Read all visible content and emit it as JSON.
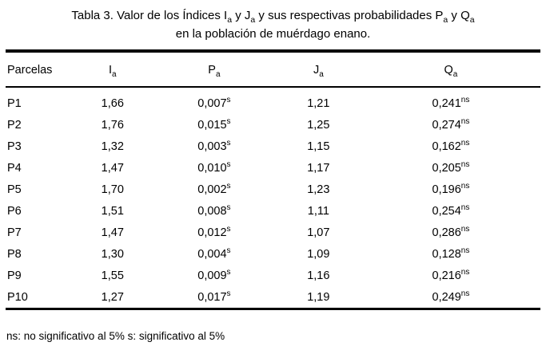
{
  "title": {
    "seg1": "Tabla 3. Valor de los Índices I",
    "seg2": " y J",
    "seg3": " y sus respectivas probabilidades P",
    "seg4": " y Q",
    "sub": "a",
    "line2": "en la población de muérdago enano."
  },
  "header": {
    "col_parcelas": "Parcelas",
    "col_ia": {
      "base": "I",
      "sub": "a"
    },
    "col_pa": {
      "base": "P",
      "sub": "a"
    },
    "col_ja": {
      "base": "J",
      "sub": "a"
    },
    "col_qa": {
      "base": "Q",
      "sub": "a"
    }
  },
  "rows": [
    {
      "parcela": "P1",
      "ia": "1,66",
      "pa": "0,007",
      "pa_sig": "s",
      "ja": "1,21",
      "qa": "0,241",
      "qa_sig": "ns"
    },
    {
      "parcela": "P2",
      "ia": "1,76",
      "pa": "0,015",
      "pa_sig": "s",
      "ja": "1,25",
      "qa": "0,274",
      "qa_sig": "ns"
    },
    {
      "parcela": "P3",
      "ia": "1,32",
      "pa": "0,003",
      "pa_sig": "s",
      "ja": "1,15",
      "qa": "0,162",
      "qa_sig": "ns"
    },
    {
      "parcela": "P4",
      "ia": "1,47",
      "pa": "0,010",
      "pa_sig": "s",
      "ja": "1,17",
      "qa": "0,205",
      "qa_sig": "ns"
    },
    {
      "parcela": "P5",
      "ia": "1,70",
      "pa": "0,002",
      "pa_sig": "s",
      "ja": "1,23",
      "qa": "0,196",
      "qa_sig": "ns"
    },
    {
      "parcela": "P6",
      "ia": "1,51",
      "pa": "0,008",
      "pa_sig": "s",
      "ja": "1,11",
      "qa": "0,254",
      "qa_sig": "ns"
    },
    {
      "parcela": "P7",
      "ia": "1,47",
      "pa": "0,012",
      "pa_sig": "s",
      "ja": "1,07",
      "qa": "0,286",
      "qa_sig": "ns"
    },
    {
      "parcela": "P8",
      "ia": "1,30",
      "pa": "0,004",
      "pa_sig": "s",
      "ja": "1,09",
      "qa": "0,128",
      "qa_sig": "ns"
    },
    {
      "parcela": "P9",
      "ia": "1,55",
      "pa": "0,009",
      "pa_sig": "s",
      "ja": "1,16",
      "qa": "0,216",
      "qa_sig": "ns"
    },
    {
      "parcela": "P10",
      "ia": "1,27",
      "pa": "0,017",
      "pa_sig": "s",
      "ja": "1,19",
      "qa": "0,249",
      "qa_sig": "ns"
    }
  ],
  "footnote": "ns: no significativo al 5% s: significativo al 5%",
  "colors": {
    "text": "#000000",
    "background": "#ffffff",
    "rule": "#000000"
  }
}
